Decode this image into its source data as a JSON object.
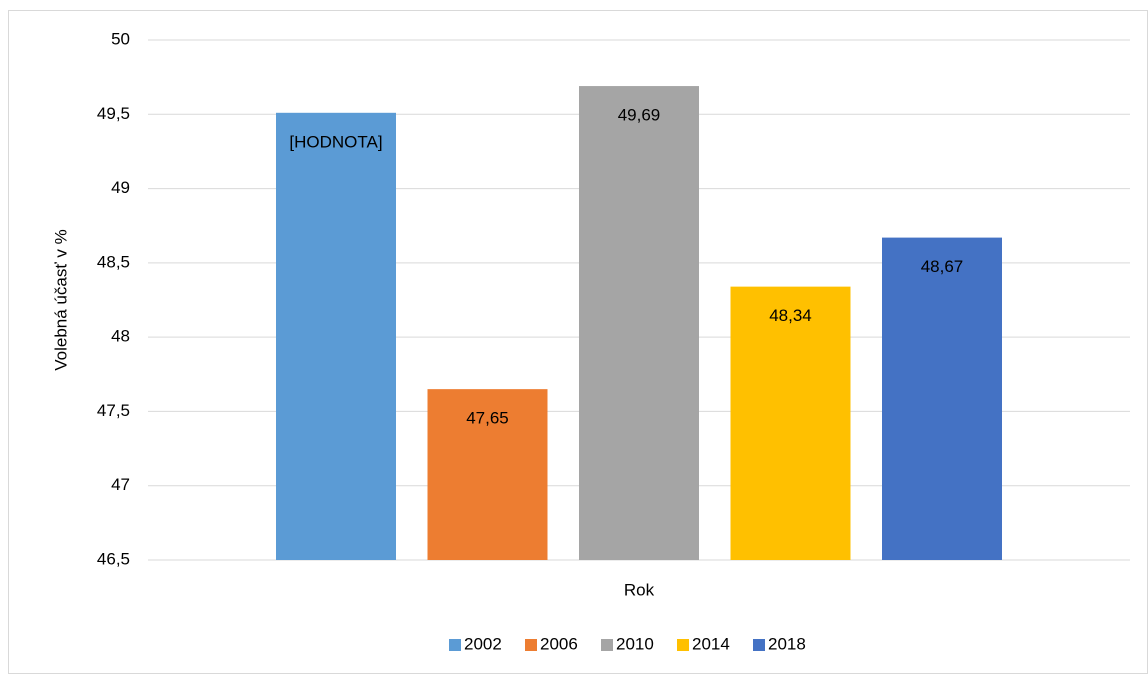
{
  "chart_data": {
    "type": "bar",
    "y_label": "Volebná účasť v %",
    "x_label": "Rok",
    "series": [
      {
        "name": "2002",
        "color": "#5b9bd5",
        "values": [
          49.51
        ],
        "value_labels": [
          "[HODNOTA]"
        ]
      },
      {
        "name": "2006",
        "color": "#ed7d31",
        "values": [
          47.65
        ],
        "value_labels": [
          "47,65"
        ]
      },
      {
        "name": "2010",
        "color": "#a5a5a5",
        "values": [
          49.69
        ],
        "value_labels": [
          "49,69"
        ]
      },
      {
        "name": "2014",
        "color": "#ffc000",
        "values": [
          48.34
        ],
        "value_labels": [
          "48,34"
        ]
      },
      {
        "name": "2018",
        "color": "#4472c4",
        "values": [
          48.67
        ],
        "value_labels": [
          "48,67"
        ]
      }
    ],
    "ylim": [
      46.5,
      50
    ],
    "yticks": [
      {
        "value": 46.5,
        "label": "46,5"
      },
      47,
      {
        "value": 47.5,
        "label": "47,5"
      },
      48,
      {
        "value": 48.5,
        "label": "48,5"
      },
      49,
      {
        "value": 49.5,
        "label": "49,5"
      },
      50
    ],
    "grid": true,
    "legend": "bottom"
  }
}
